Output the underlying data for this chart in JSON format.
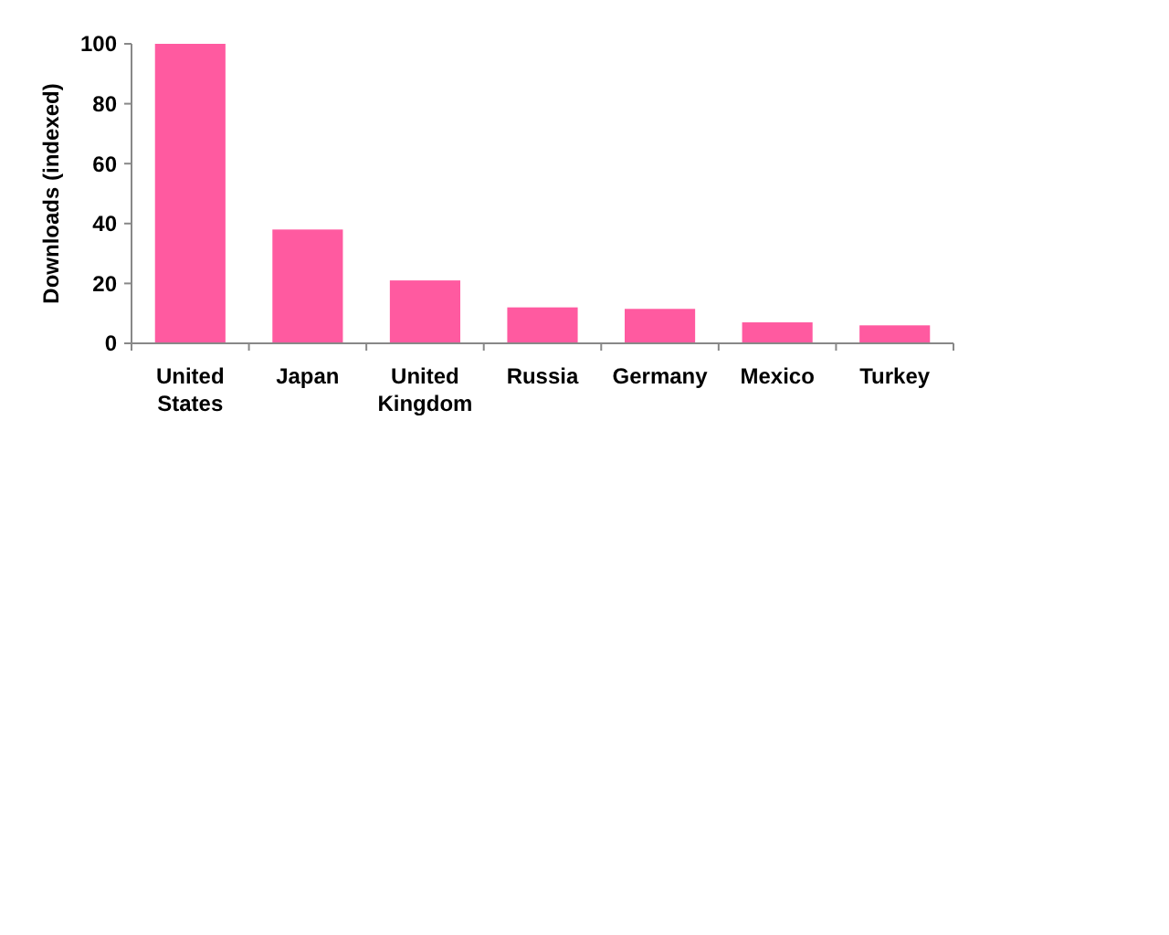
{
  "chart_data": {
    "type": "bar",
    "ylabel": "Downloads (indexed)",
    "categories": [
      "United States",
      "Japan",
      "United Kingdom",
      "Russia",
      "Germany",
      "Mexico",
      "Turkey"
    ],
    "values": [
      100,
      38,
      21,
      12,
      11.5,
      7,
      6
    ],
    "color": "#ff5aa0",
    "ylim": [
      0,
      100
    ],
    "yticks": [
      0,
      20,
      40,
      60,
      80,
      100
    ],
    "grid": false
  }
}
